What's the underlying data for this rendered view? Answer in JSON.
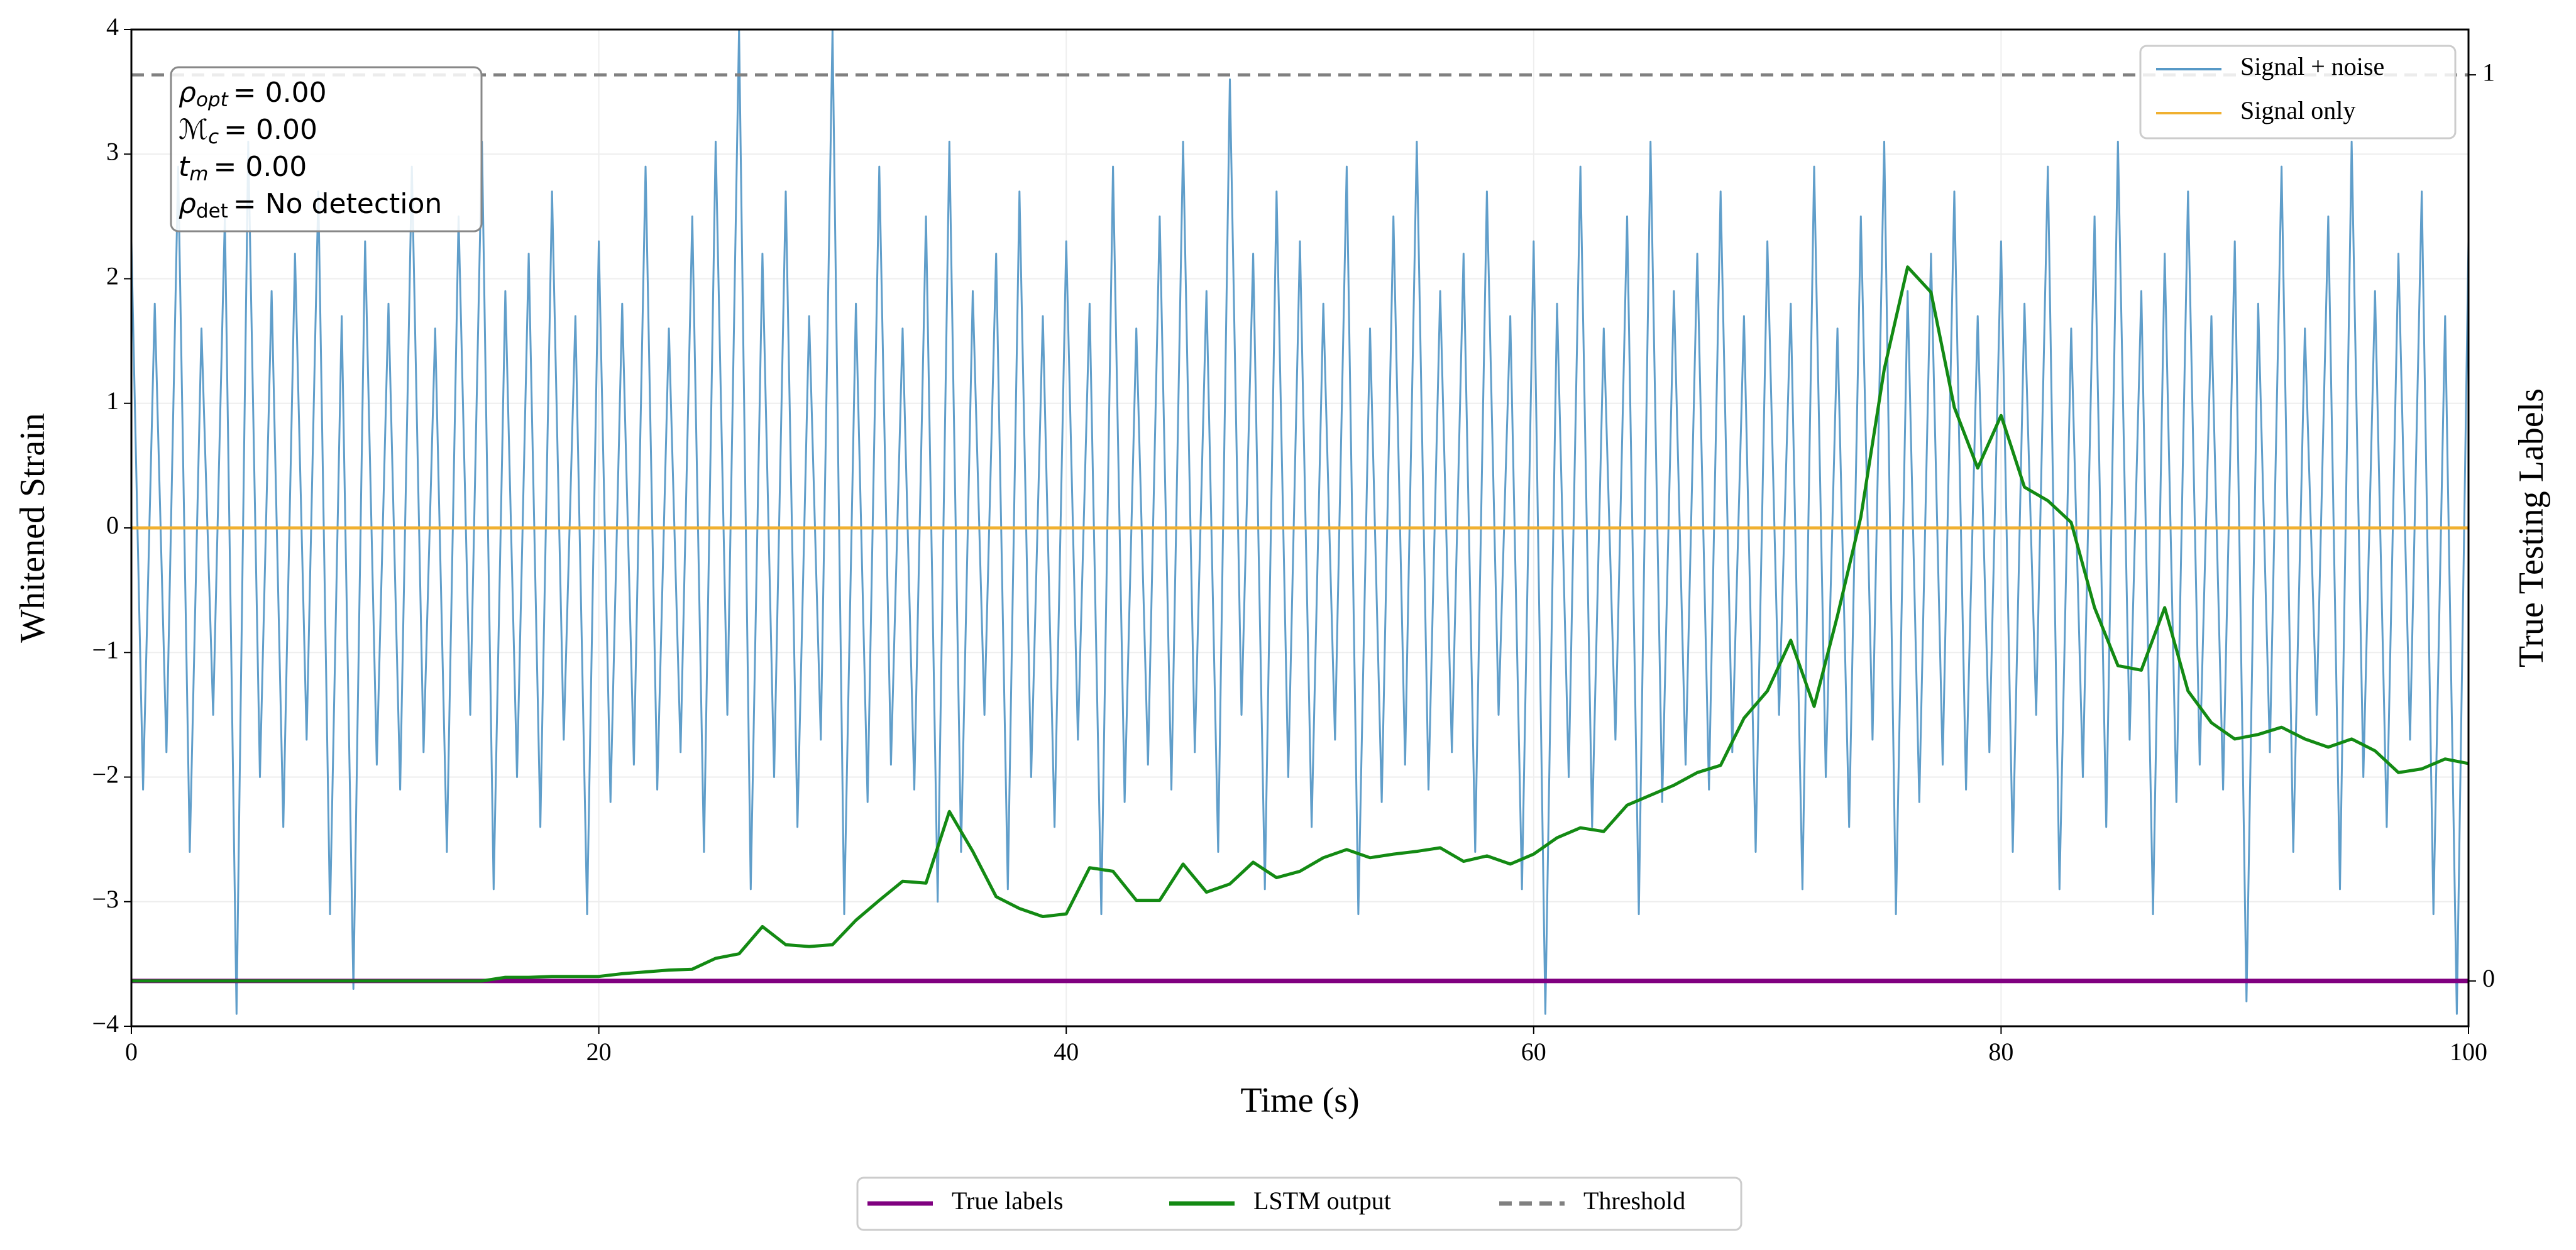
{
  "chart_data": {
    "type": "line",
    "xlabel": "Time (s)",
    "ylabel": "Whitened Strain",
    "y2label": "True Testing Labels",
    "xlim": [
      0,
      100
    ],
    "xticks": [
      0,
      20,
      40,
      60,
      80,
      100
    ],
    "ylim": [
      -4,
      4
    ],
    "yticks": [
      {
        "value": -4,
        "label": "−4"
      },
      {
        "value": -3,
        "label": "−3"
      },
      {
        "value": -2,
        "label": "−2"
      },
      {
        "value": -1,
        "label": "−1"
      },
      0,
      1,
      2,
      3,
      4
    ],
    "y2lim": [
      -0.05,
      1.05
    ],
    "y2ticks": [
      0,
      1
    ],
    "grid": true,
    "legend": "upper right",
    "legend2": "lower center",
    "annotations": [
      {
        "symbol": "ρ",
        "sub": "opt",
        "text": "= 0.00"
      },
      {
        "symbol": "ℳ",
        "sub": "c",
        "text": "= 0.00"
      },
      {
        "symbol": "t",
        "sub": "m",
        "text": "= 0.00"
      },
      {
        "symbol": "ρ",
        "sub": "det",
        "text": "= No detection"
      }
    ],
    "series": [
      {
        "name": "Signal + noise",
        "color": "#5799c7",
        "x": [
          0,
          0.5,
          1,
          1.5,
          2,
          2.5,
          3,
          3.5,
          4,
          4.5,
          5,
          5.5,
          6,
          6.5,
          7,
          7.5,
          8,
          8.5,
          9,
          9.5,
          10,
          10.5,
          11,
          11.5,
          12,
          12.5,
          13,
          13.5,
          14,
          14.5,
          15,
          15.5,
          16,
          16.5,
          17,
          17.5,
          18,
          18.5,
          19,
          19.5,
          20,
          20.5,
          21,
          21.5,
          22,
          22.5,
          23,
          23.5,
          24,
          24.5,
          25,
          25.5,
          26,
          26.5,
          27,
          27.5,
          28,
          28.5,
          29,
          29.5,
          30,
          30.5,
          31,
          31.5,
          32,
          32.5,
          33,
          33.5,
          34,
          34.5,
          35,
          35.5,
          36,
          36.5,
          37,
          37.5,
          38,
          38.5,
          39,
          39.5,
          40,
          40.5,
          41,
          41.5,
          42,
          42.5,
          43,
          43.5,
          44,
          44.5,
          45,
          45.5,
          46,
          46.5,
          47,
          47.5,
          48,
          48.5,
          49,
          49.5,
          50,
          50.5,
          51,
          51.5,
          52,
          52.5,
          53,
          53.5,
          54,
          54.5,
          55,
          55.5,
          56,
          56.5,
          57,
          57.5,
          58,
          58.5,
          59,
          59.5,
          60,
          60.5,
          61,
          61.5,
          62,
          62.5,
          63,
          63.5,
          64,
          64.5,
          65,
          65.5,
          66,
          66.5,
          67,
          67.5,
          68,
          68.5,
          69,
          69.5,
          70,
          70.5,
          71,
          71.5,
          72,
          72.5,
          73,
          73.5,
          74,
          74.5,
          75,
          75.5,
          76,
          76.5,
          77,
          77.5,
          78,
          78.5,
          79,
          79.5,
          80,
          80.5,
          81,
          81.5,
          82,
          82.5,
          83,
          83.5,
          84,
          84.5,
          85,
          85.5,
          86,
          86.5,
          87,
          87.5,
          88,
          88.5,
          89,
          89.5,
          90,
          90.5,
          91,
          91.5,
          92,
          92.5,
          93,
          93.5,
          94,
          94.5,
          95,
          95.5,
          96,
          96.5,
          97,
          97.5,
          98,
          98.5,
          99,
          99.5,
          100
        ],
        "values": [
          2.3,
          -2.1,
          1.8,
          -1.8,
          2.9,
          -2.6,
          1.6,
          -1.5,
          2.5,
          -3.9,
          3.1,
          -2.0,
          1.9,
          -2.4,
          2.2,
          -1.7,
          2.7,
          -3.1,
          1.7,
          -3.7,
          2.3,
          -1.9,
          1.8,
          -2.1,
          2.9,
          -1.8,
          1.6,
          -2.6,
          2.5,
          -1.5,
          3.1,
          -2.9,
          1.9,
          -2.0,
          2.2,
          -2.4,
          2.7,
          -1.7,
          1.7,
          -3.1,
          2.3,
          -2.2,
          1.8,
          -1.9,
          2.9,
          -2.1,
          1.6,
          -1.8,
          2.5,
          -2.6,
          3.1,
          -1.5,
          4.0,
          -2.9,
          2.2,
          -2.0,
          2.7,
          -2.4,
          1.7,
          -1.7,
          4.0,
          -3.1,
          1.8,
          -2.2,
          2.9,
          -1.9,
          1.6,
          -2.1,
          2.5,
          -3.0,
          3.1,
          -2.6,
          1.9,
          -1.5,
          2.2,
          -2.9,
          2.7,
          -2.0,
          1.7,
          -2.4,
          2.3,
          -1.7,
          1.8,
          -3.1,
          2.9,
          -2.2,
          1.6,
          -1.9,
          2.5,
          -2.1,
          3.1,
          -1.8,
          1.9,
          -2.6,
          3.6,
          -1.5,
          2.2,
          -2.9,
          2.7,
          -2.0,
          2.3,
          -2.4,
          1.8,
          -1.7,
          2.9,
          -3.1,
          1.6,
          -2.2,
          2.5,
          -1.9,
          3.1,
          -2.1,
          1.9,
          -1.8,
          2.2,
          -2.6,
          2.7,
          -1.5,
          1.7,
          -2.9,
          2.3,
          -3.9,
          1.8,
          -2.0,
          2.9,
          -2.4,
          1.6,
          -1.7,
          2.5,
          -3.1,
          3.1,
          -2.2,
          1.9,
          -1.9,
          2.2,
          -2.1,
          2.7,
          -1.8,
          1.7,
          -2.6,
          2.3,
          -1.5,
          1.8,
          -2.9,
          2.9,
          -2.0,
          1.6,
          -2.4,
          2.5,
          -1.7,
          3.1,
          -3.1,
          1.9,
          -2.2,
          2.2,
          -1.9,
          2.7,
          -2.1,
          1.7,
          -1.8,
          2.3,
          -2.6,
          1.8,
          -1.5,
          2.9,
          -2.9,
          1.6,
          -2.0,
          2.5,
          -2.4,
          3.1,
          -1.7,
          1.9,
          -3.1,
          2.2,
          -2.2,
          2.7,
          -1.9,
          1.7,
          -2.1,
          2.3,
          -3.8,
          1.8,
          -1.8,
          2.9,
          -2.6,
          1.6,
          -1.5,
          2.5,
          -2.9,
          3.1,
          -2.0,
          1.9,
          -2.4,
          2.2,
          -1.7,
          2.7,
          -3.1,
          1.7,
          -3.9,
          2.3
        ]
      },
      {
        "name": "Signal only",
        "color": "#f0b030",
        "x": [
          0,
          100
        ],
        "values": [
          0,
          0
        ]
      },
      {
        "name": "True labels",
        "color": "#800080",
        "axis": "y2",
        "x": [
          0,
          100
        ],
        "values": [
          0,
          0
        ]
      },
      {
        "name": "LSTM output",
        "color": "#138a13",
        "axis": "y2",
        "x": [
          0,
          1,
          2,
          3,
          4,
          5,
          6,
          7,
          8,
          9,
          10,
          11,
          12,
          13,
          14,
          15,
          16,
          17,
          18,
          19,
          20,
          21,
          22,
          23,
          24,
          25,
          26,
          27,
          28,
          29,
          30,
          31,
          32,
          33,
          34,
          35,
          36,
          37,
          38,
          39,
          40,
          41,
          42,
          43,
          44,
          45,
          46,
          47,
          48,
          49,
          50,
          51,
          52,
          53,
          54,
          55,
          56,
          57,
          58,
          59,
          60,
          61,
          62,
          63,
          64,
          65,
          66,
          67,
          68,
          69,
          70,
          71,
          72,
          73,
          74,
          75,
          76,
          77,
          78,
          79,
          80,
          81,
          82,
          83,
          84,
          85,
          86,
          87,
          88,
          89,
          90,
          91,
          92,
          93,
          94,
          95,
          96,
          97,
          98,
          99,
          100
        ],
        "values": [
          0,
          0,
          0,
          0,
          0,
          0,
          0,
          0,
          0,
          0,
          0,
          0,
          0,
          0,
          0,
          0,
          0.004,
          0.004,
          0.005,
          0.005,
          0.005,
          0.008,
          0.01,
          0.012,
          0.013,
          0.025,
          0.03,
          0.06,
          0.04,
          0.038,
          0.04,
          0.067,
          0.089,
          0.11,
          0.108,
          0.187,
          0.143,
          0.093,
          0.08,
          0.071,
          0.074,
          0.125,
          0.121,
          0.089,
          0.089,
          0.129,
          0.098,
          0.107,
          0.131,
          0.114,
          0.121,
          0.136,
          0.145,
          0.136,
          0.14,
          0.143,
          0.147,
          0.132,
          0.138,
          0.129,
          0.14,
          0.158,
          0.169,
          0.165,
          0.194,
          0.205,
          0.216,
          0.23,
          0.238,
          0.29,
          0.32,
          0.376,
          0.303,
          0.403,
          0.512,
          0.675,
          0.788,
          0.76,
          0.633,
          0.566,
          0.624,
          0.545,
          0.53,
          0.506,
          0.412,
          0.348,
          0.343,
          0.412,
          0.32,
          0.285,
          0.267,
          0.272,
          0.28,
          0.267,
          0.258,
          0.267,
          0.254,
          0.23,
          0.234,
          0.245,
          0.24
        ]
      },
      {
        "name": "Threshold",
        "color": "#808080",
        "axis": "y2",
        "dash": "dashed",
        "x": [
          0,
          100
        ],
        "values": [
          1,
          1
        ]
      }
    ]
  }
}
